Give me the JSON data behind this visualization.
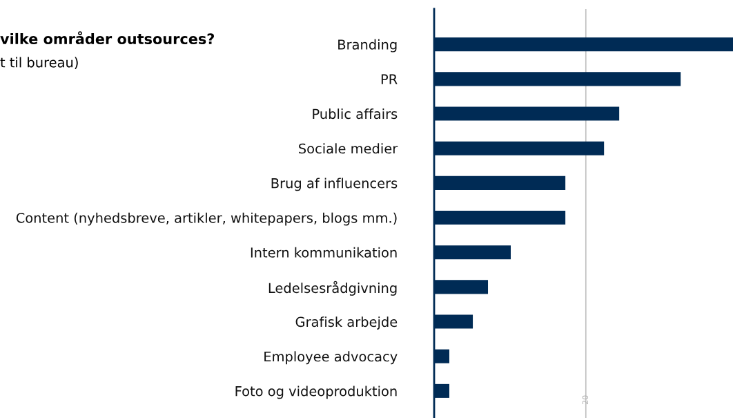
{
  "chart_data": {
    "type": "bar",
    "orientation": "horizontal",
    "title": "vilke områder outsources?",
    "subtitle": "t til bureau)",
    "categories": [
      "Branding",
      "PR",
      "Public affairs",
      "Sociale medier",
      "Brug af influencers",
      "Content (nyhedsbreve, artikler, whitepapers, blogs mm.)",
      "Intern kommunikation",
      "Ledelsesrådgivning",
      "Grafisk arbejde",
      "Employee advocacy",
      "Foto og videoproduktion"
    ],
    "values": [
      39.4,
      32.5,
      24.4,
      22.4,
      17.3,
      17.3,
      10.1,
      7.1,
      5.1,
      2,
      2
    ],
    "color": "#002b55",
    "xlim": [
      0,
      39.4
    ],
    "xticks": [
      {
        "value": 0,
        "label": null
      },
      20
    ],
    "grid": "x",
    "legend": false
  }
}
